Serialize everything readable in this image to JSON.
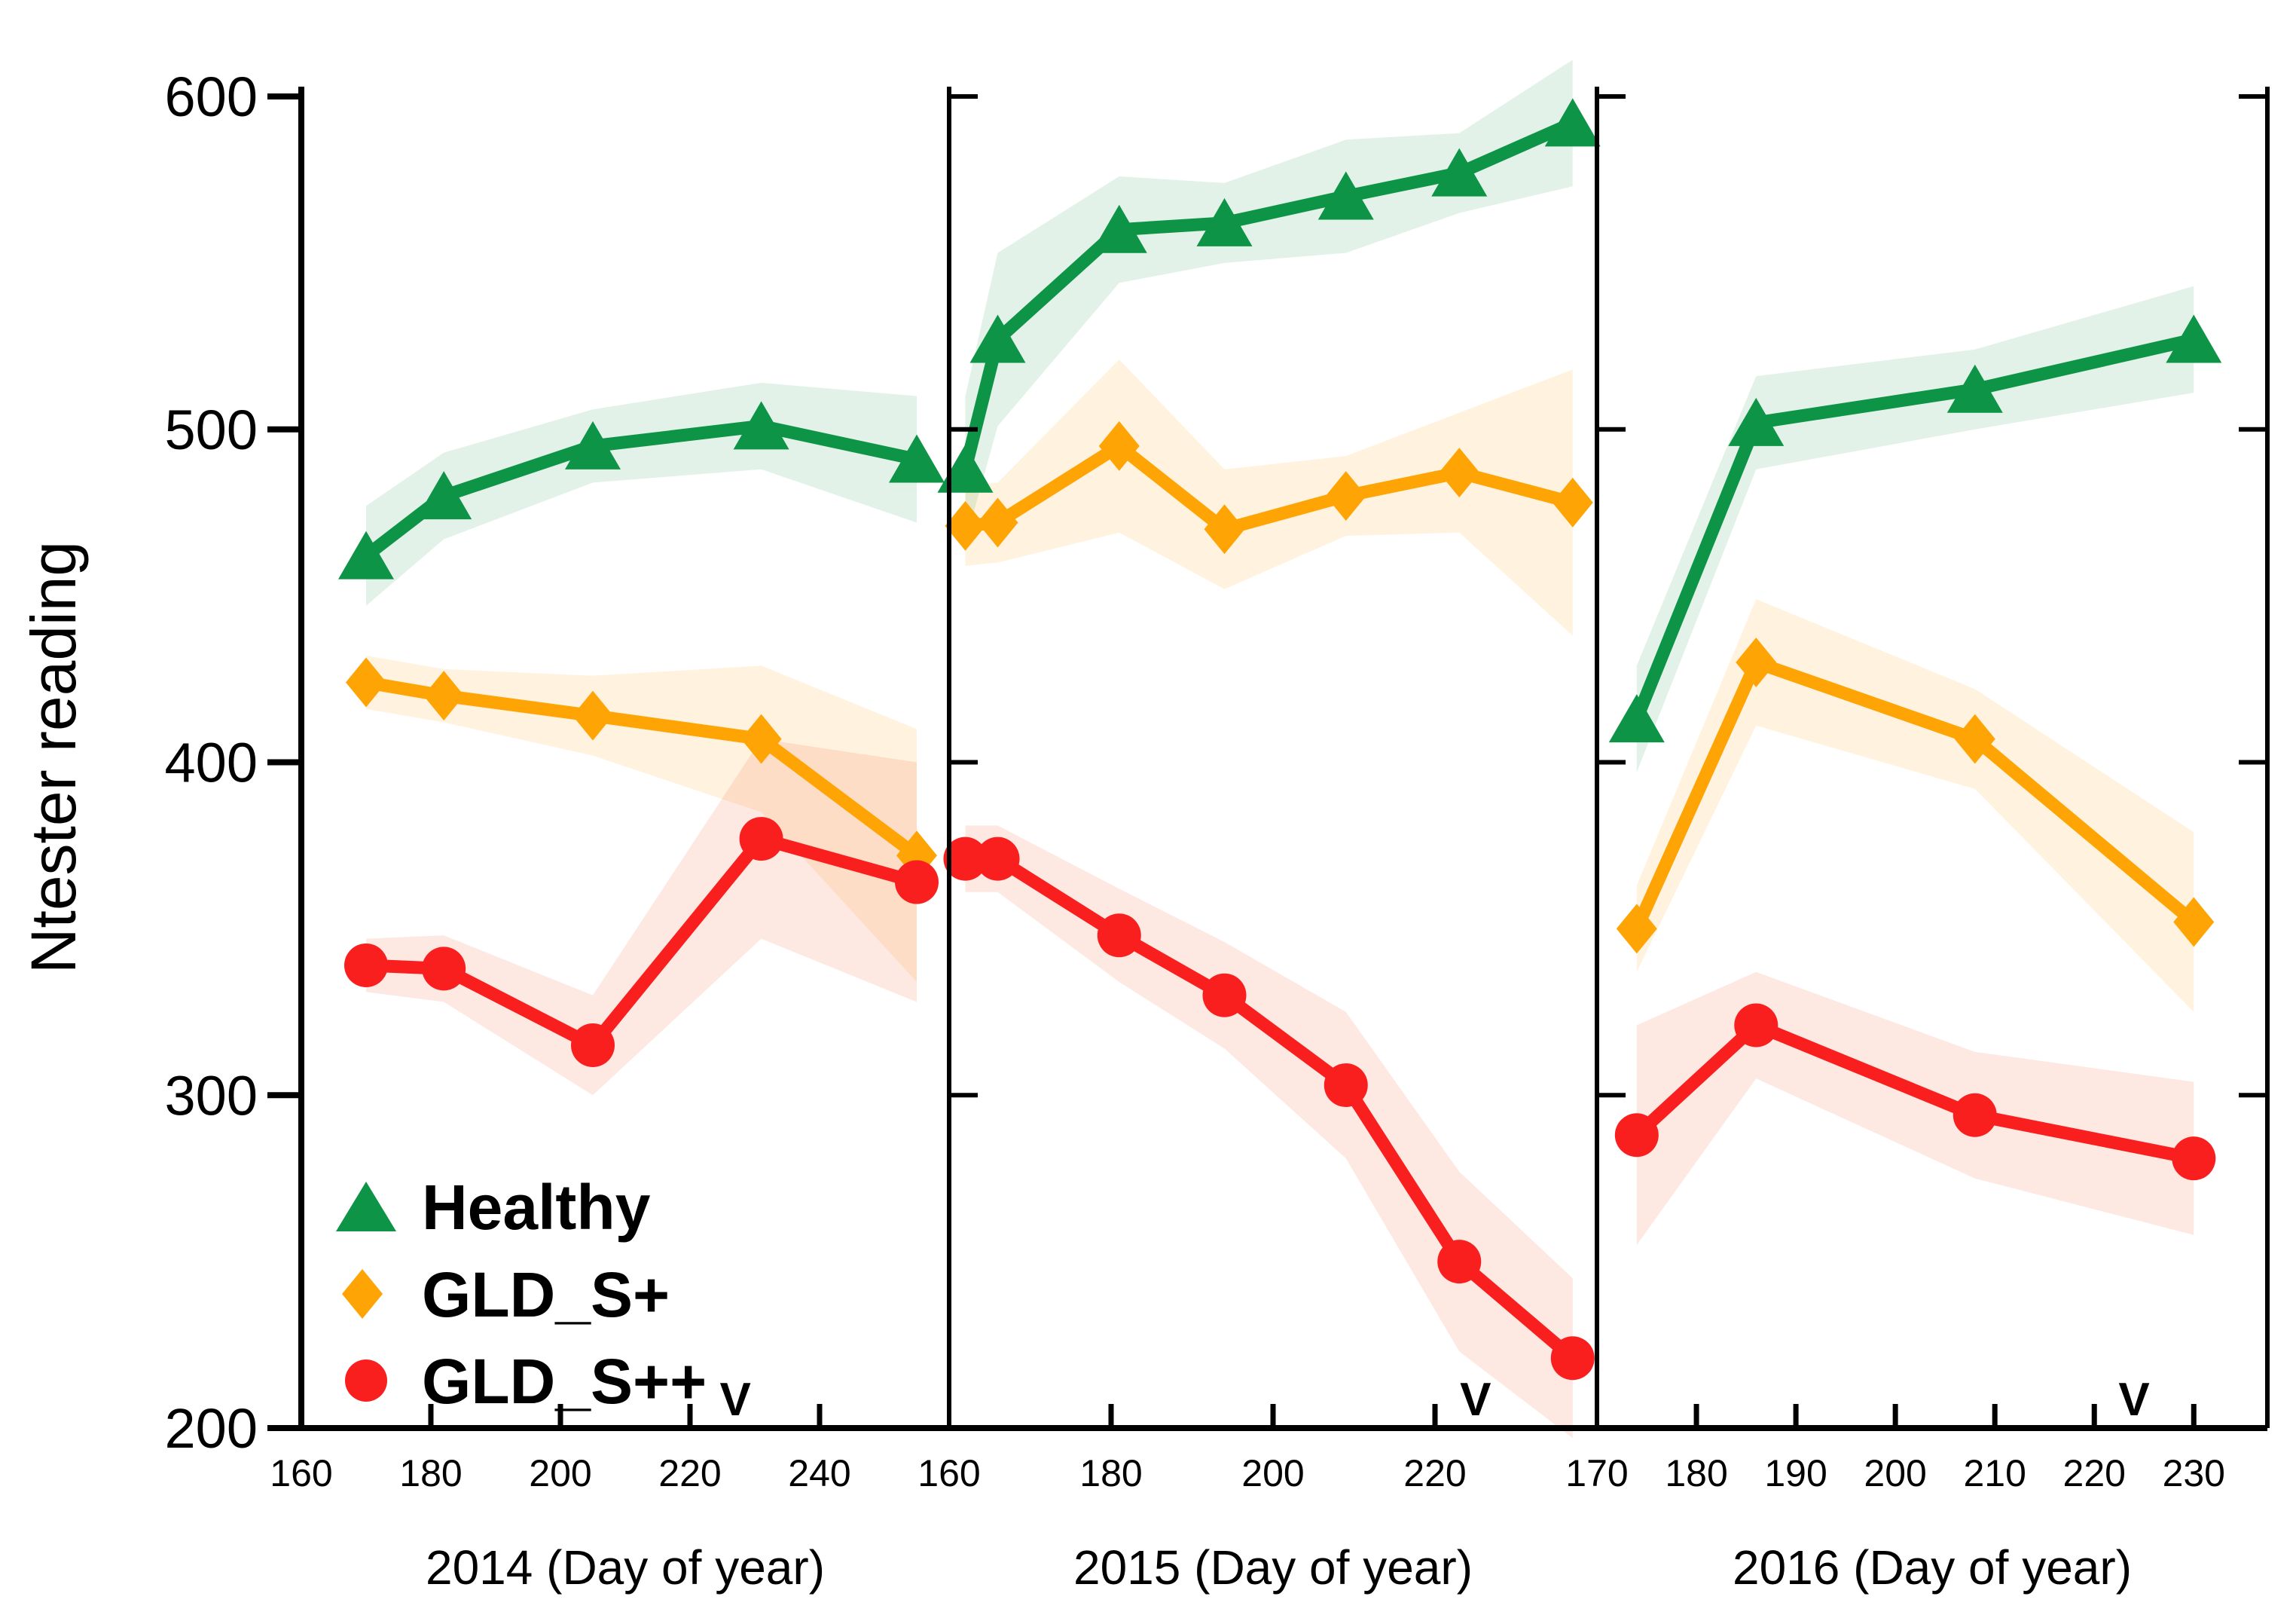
{
  "figure": {
    "y_axis": {
      "label": "Ntester reading",
      "tick_values": [
        200,
        300,
        400,
        500,
        600
      ],
      "tick_labels": [
        "200",
        "300",
        "400",
        "500",
        "600"
      ],
      "min": 200,
      "max": 600
    },
    "legend": {
      "items": [
        {
          "label": "Healthy",
          "color": "#0D9446",
          "marker": "triangle"
        },
        {
          "label": "GLD_S+",
          "color": "#FFA405",
          "marker": "diamond"
        },
        {
          "label": "GLD_S++",
          "color": "#FA1F1F",
          "marker": "circle"
        }
      ]
    },
    "veraison_symbol": "V",
    "colors": {
      "healthy": "#0D9446",
      "gld_s_plus": "#FFA405",
      "gld_s_plus_plus": "#FA1F1F",
      "axis": "#000000"
    }
  },
  "chart_data": {
    "type": "line",
    "title": "",
    "ylabel": "Ntester reading",
    "ylim": [
      200,
      600
    ],
    "grid": false,
    "legend_position": "lower-left-inside",
    "panels": [
      {
        "year": "2014",
        "xlabel": "2014 (Day of year)",
        "x_min": 160,
        "x_max": 260,
        "x_ticks": [
          160,
          180,
          200,
          220,
          240
        ],
        "x_tick_labels": [
          "160",
          "180",
          "200",
          "220",
          "240"
        ],
        "v_day": 227,
        "series": [
          {
            "name": "Healthy",
            "marker": "triangle",
            "color": "#0D9446",
            "band_color": "#0D9446",
            "band_opacity": 0.12,
            "x": [
              170,
              182,
              205,
              231,
              255
            ],
            "y": [
              462,
              480,
              495,
              501,
              491
            ],
            "band": [
              15,
              13,
              11,
              13,
              19
            ]
          },
          {
            "name": "GLD_S+",
            "marker": "diamond",
            "color": "#FFA405",
            "band_color": "#FFA405",
            "band_opacity": 0.13,
            "x": [
              170,
              182,
              205,
              231,
              255
            ],
            "y": [
              424,
              420,
              414,
              407,
              372
            ],
            "band": [
              8,
              8,
              12,
              22,
              38
            ]
          },
          {
            "name": "GLD_S++",
            "marker": "circle",
            "color": "#FA1F1F",
            "band_color": "#F9501E",
            "band_opacity": 0.13,
            "x": [
              170,
              182,
              205,
              231,
              255
            ],
            "y": [
              339,
              338,
              315,
              377,
              364
            ],
            "band": [
              8,
              10,
              15,
              30,
              36
            ]
          }
        ]
      },
      {
        "year": "2015",
        "xlabel": "2015 (Day of year)",
        "x_min": 160,
        "x_max": 240,
        "x_ticks": [
          160,
          180,
          200,
          220
        ],
        "x_tick_labels": [
          "160",
          "180",
          "200",
          "220"
        ],
        "v_day": 225,
        "series": [
          {
            "name": "Healthy",
            "marker": "triangle",
            "color": "#0D9446",
            "band_color": "#0D9446",
            "band_opacity": 0.12,
            "x": [
              162,
              166,
              181,
              194,
              209,
              223,
              237
            ],
            "y": [
              488,
              527,
              560,
              562,
              570,
              577,
              592
            ],
            "band": [
              22,
              26,
              16,
              12,
              17,
              12,
              19
            ]
          },
          {
            "name": "GLD_S+",
            "marker": "diamond",
            "color": "#FFA405",
            "band_color": "#FFA405",
            "band_opacity": 0.13,
            "x": [
              162,
              166,
              181,
              194,
              209,
              223,
              237
            ],
            "y": [
              471,
              472,
              495,
              470,
              480,
              487,
              478
            ],
            "band": [
              12,
              12,
              26,
              18,
              12,
              18,
              40
            ]
          },
          {
            "name": "GLD_S++",
            "marker": "circle",
            "color": "#FA1F1F",
            "band_color": "#F9501E",
            "band_opacity": 0.13,
            "x": [
              162,
              166,
              181,
              194,
              209,
              223,
              237
            ],
            "y": [
              371,
              371,
              348,
              330,
              303,
              250,
              221
            ],
            "band": [
              10,
              10,
              14,
              16,
              22,
              27,
              24
            ]
          }
        ]
      },
      {
        "year": "2016",
        "xlabel": "2016 (Day of year)",
        "x_min": 170,
        "x_max": 237.4,
        "x_ticks": [
          170,
          180,
          190,
          200,
          210,
          220,
          230
        ],
        "x_tick_labels": [
          "170",
          "180",
          "190",
          "200",
          "210",
          "220",
          "230"
        ],
        "v_day": 224,
        "series": [
          {
            "name": "Healthy",
            "marker": "triangle",
            "color": "#0D9446",
            "band_color": "#0D9446",
            "band_opacity": 0.12,
            "x": [
              174,
              186,
              208,
              230
            ],
            "y": [
              413,
              502,
              512,
              527
            ],
            "band": [
              16,
              14,
              12,
              16
            ]
          },
          {
            "name": "GLD_S+",
            "marker": "diamond",
            "color": "#FFA405",
            "band_color": "#FFA405",
            "band_opacity": 0.13,
            "x": [
              174,
              186,
              208,
              230
            ],
            "y": [
              350,
              430,
              407,
              352
            ],
            "band": [
              13,
              19,
              15,
              27
            ]
          },
          {
            "name": "GLD_S++",
            "marker": "circle",
            "color": "#FA1F1F",
            "band_color": "#F9501E",
            "band_opacity": 0.13,
            "x": [
              174,
              186,
              208,
              230
            ],
            "y": [
              288,
              321,
              294,
              281
            ],
            "band": [
              33,
              16,
              19,
              23
            ]
          }
        ]
      }
    ]
  }
}
